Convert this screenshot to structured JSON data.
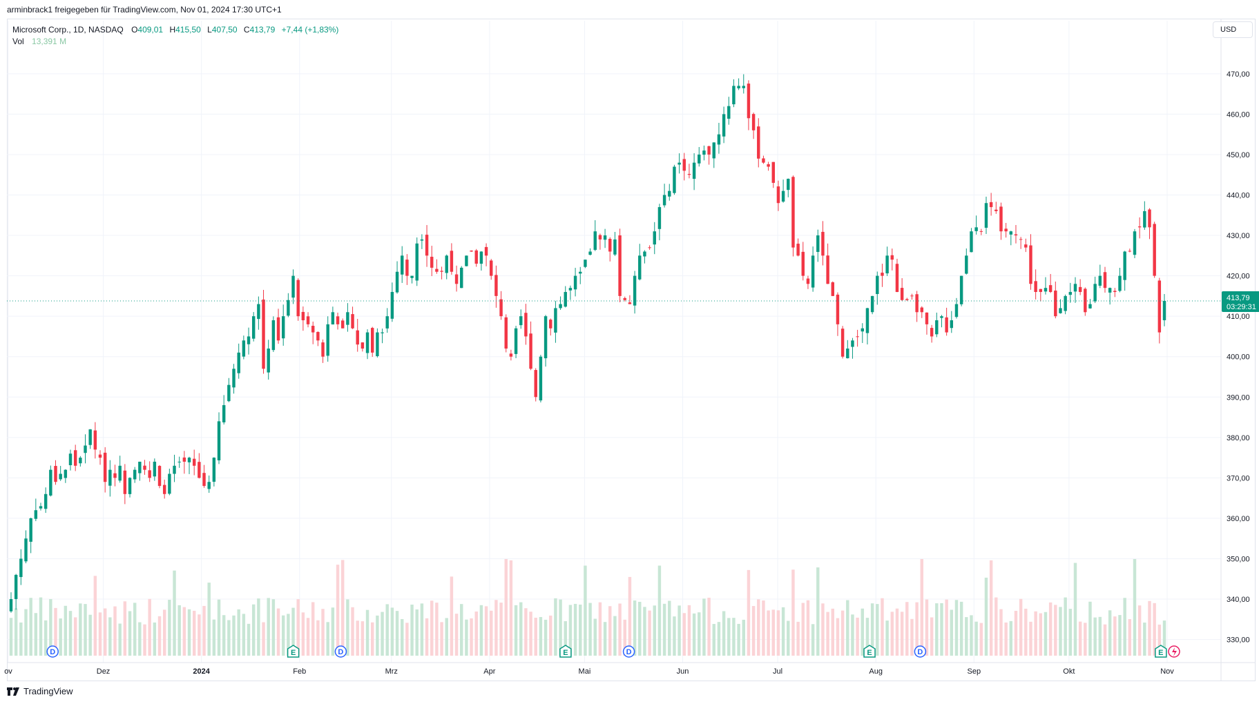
{
  "header": {
    "attribution": "arminbrack1 freigegeben für TradingView.com, Nov 01, 2024 17:30 UTC+1"
  },
  "legend": {
    "symbol": "Microsoft Corp., 1D, NASDAQ",
    "open_label": "O",
    "open": "409,01",
    "high_label": "H",
    "high": "415,50",
    "low_label": "L",
    "low": "407,50",
    "close_label": "C",
    "close": "413,79",
    "change": "+7,44 (+1,83%)",
    "vol_label": "Vol",
    "vol": "13,391 M"
  },
  "currency": "USD",
  "price_tag": {
    "price": "413,79",
    "countdown": "03:29:31"
  },
  "footer": {
    "brand": "TradingView"
  },
  "colors": {
    "up": "#089981",
    "down": "#f23645",
    "vol_up": "#c8e6d5",
    "vol_down": "#fbd3d6",
    "grid": "#f0f3fa",
    "axis_text": "#131722",
    "dividend": "#2962ff",
    "earnings": "#089981",
    "split_marker": "#e91e63"
  },
  "chart_data": {
    "type": "candlestick",
    "title": "Microsoft Corp., 1D, NASDAQ",
    "ylim": [
      326,
      478
    ],
    "y_ticks": [
      "330,00",
      "340,00",
      "350,00",
      "360,00",
      "370,00",
      "380,00",
      "390,00",
      "400,00",
      "410,00",
      "420,00",
      "430,00",
      "440,00",
      "450,00",
      "460,00",
      "470,00"
    ],
    "x_ticks": [
      {
        "label": "ov",
        "date": "2023-11-01"
      },
      {
        "label": "Dez",
        "date": "2023-12-01"
      },
      {
        "label": "2024",
        "date": "2024-01-01"
      },
      {
        "label": "Feb",
        "date": "2024-02-01"
      },
      {
        "label": "Mrz",
        "date": "2024-03-01"
      },
      {
        "label": "Apr",
        "date": "2024-04-01"
      },
      {
        "label": "Mai",
        "date": "2024-05-01"
      },
      {
        "label": "Jun",
        "date": "2024-06-01"
      },
      {
        "label": "Jul",
        "date": "2024-07-01"
      },
      {
        "label": "Aug",
        "date": "2024-08-01"
      },
      {
        "label": "Sep",
        "date": "2024-09-01"
      },
      {
        "label": "Okt",
        "date": "2024-10-01"
      },
      {
        "label": "Nov",
        "date": "2024-11-01"
      }
    ],
    "last_price": 413.79,
    "closes": [
      340,
      346,
      350,
      355,
      360,
      362,
      363,
      366,
      372,
      369,
      371,
      372,
      376,
      373,
      375,
      378,
      382,
      377,
      375,
      369,
      372,
      370,
      373,
      366,
      370,
      372,
      374,
      372,
      370,
      374,
      368,
      366,
      371,
      373,
      374,
      374,
      375,
      373,
      370,
      368,
      369,
      375,
      384,
      388,
      393,
      397,
      401,
      404,
      405,
      410,
      413,
      397,
      402,
      409,
      404,
      410,
      414,
      420,
      410,
      409,
      408,
      406,
      404,
      400,
      408,
      411,
      408,
      407,
      411,
      407,
      403,
      402,
      406,
      401,
      406,
      406,
      410,
      416,
      421,
      425,
      420,
      420,
      428,
      429,
      425,
      422,
      421,
      421,
      425,
      421,
      418,
      422,
      425,
      426,
      423,
      426,
      425,
      420,
      415,
      410,
      402,
      400,
      407,
      410,
      405,
      397,
      390,
      400,
      410,
      407,
      412,
      413,
      416,
      417,
      420,
      421,
      424,
      426,
      431,
      429,
      430,
      426,
      429,
      415,
      414,
      413,
      420,
      425,
      426,
      427,
      431,
      437,
      440,
      441,
      447,
      448,
      446,
      445,
      448,
      450,
      451,
      450,
      453,
      455,
      460,
      462,
      467,
      467,
      467,
      459,
      456,
      449,
      448,
      447,
      443,
      438,
      441,
      444,
      427,
      425,
      420,
      418,
      425,
      430,
      425,
      418,
      415,
      408,
      400,
      402,
      404,
      405,
      407,
      412,
      415,
      420,
      420,
      425,
      424,
      416,
      414,
      414,
      415,
      411,
      411,
      408,
      405,
      409,
      410,
      406,
      409,
      413,
      420,
      425,
      431,
      432,
      431,
      438,
      437,
      436,
      431,
      431,
      431,
      430,
      429,
      427,
      418,
      416,
      416,
      417,
      416,
      410,
      412,
      415,
      416,
      418,
      416,
      411,
      413,
      418,
      420,
      417,
      417,
      416,
      420,
      426,
      426,
      431,
      432,
      436,
      432,
      420,
      406,
      413.79
    ],
    "events": [
      {
        "type": "D",
        "date": "2023-11-15"
      },
      {
        "type": "E",
        "date": "2024-01-30"
      },
      {
        "type": "D",
        "date": "2024-02-14"
      },
      {
        "type": "E",
        "date": "2024-04-25"
      },
      {
        "type": "D",
        "date": "2024-05-15"
      },
      {
        "type": "E",
        "date": "2024-07-30"
      },
      {
        "type": "D",
        "date": "2024-08-15"
      },
      {
        "type": "E",
        "date": "2024-10-30"
      }
    ]
  }
}
